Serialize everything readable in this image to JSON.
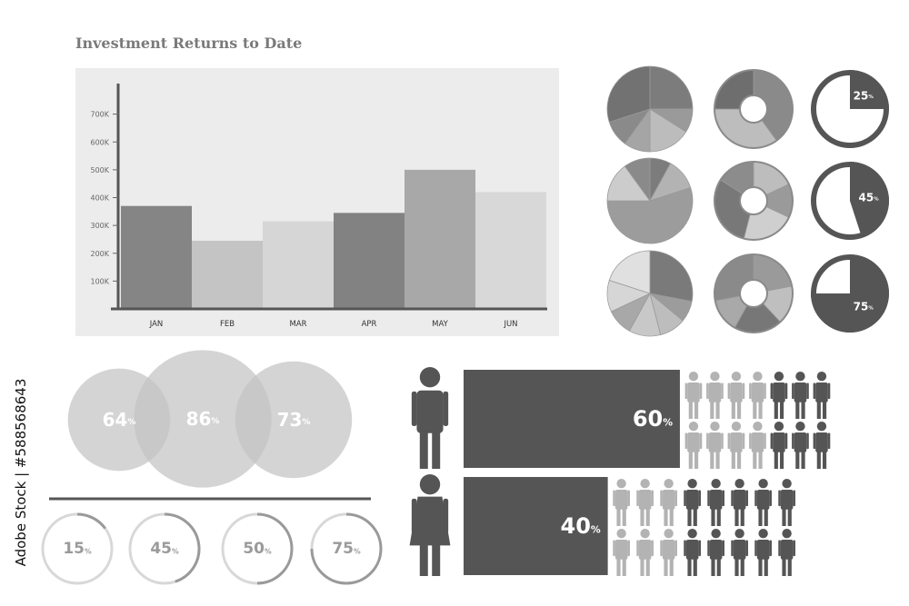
{
  "title": "Investment Returns to Date",
  "stock_id": "Adobe Stock | #588568643",
  "chart_data": [
    {
      "type": "bar",
      "title": "Investment Returns to Date",
      "categories": [
        "JAN",
        "FEB",
        "MAR",
        "APR",
        "MAY",
        "JUN"
      ],
      "values": [
        370000,
        245000,
        315000,
        345000,
        500000,
        420000
      ],
      "yticks": [
        "100K",
        "200K",
        "300K",
        "400K",
        "500K",
        "600K",
        "700K"
      ],
      "ylim": [
        0,
        800000
      ],
      "colors": [
        "#858585",
        "#c4c4c4",
        "#d6d6d6",
        "#828282",
        "#a8a8a8",
        "#d8d8d8"
      ]
    },
    {
      "type": "pie",
      "charts": [
        {
          "style": "pie",
          "values": [
            25,
            9,
            16,
            10,
            10,
            30
          ],
          "colors": [
            "#7c7c7c",
            "#9a9a9a",
            "#bcbcbc",
            "#a5a5a5",
            "#8a8a8a",
            "#727272"
          ]
        },
        {
          "style": "donut",
          "values": [
            40,
            35,
            25
          ],
          "colors": [
            "#8a8a8a",
            "#bdbdbd",
            "#6e6e6e"
          ]
        },
        {
          "style": "gauge",
          "percent": 25,
          "label": "25",
          "unit": "%"
        },
        {
          "style": "pie",
          "values": [
            8,
            12,
            55,
            15,
            10
          ],
          "colors": [
            "#7c7c7c",
            "#b3b3b3",
            "#9c9c9c",
            "#cccccc",
            "#8a8a8a"
          ]
        },
        {
          "style": "donut",
          "values": [
            18,
            14,
            22,
            30,
            16
          ],
          "colors": [
            "#bdbdbd",
            "#9a9a9a",
            "#cfcfcf",
            "#787878",
            "#8c8c8c"
          ]
        },
        {
          "style": "gauge",
          "percent": 45,
          "label": "45",
          "unit": "%"
        },
        {
          "style": "pie",
          "values": [
            28,
            8,
            10,
            12,
            10,
            12,
            20
          ],
          "colors": [
            "#7a7a7a",
            "#9c9c9c",
            "#bdbdbd",
            "#c8c8c8",
            "#a8a8a8",
            "#d6d6d6",
            "#e0e0e0"
          ]
        },
        {
          "style": "donut",
          "values": [
            22,
            16,
            20,
            14,
            28
          ],
          "colors": [
            "#9a9a9a",
            "#bfbfbf",
            "#777777",
            "#a9a9a9",
            "#8a8a8a"
          ]
        },
        {
          "style": "gauge",
          "percent": 75,
          "label": "75",
          "unit": "%"
        }
      ]
    },
    {
      "type": "bubble",
      "bubbles": [
        {
          "label": "64",
          "unit": "%",
          "value": 64
        },
        {
          "label": "86",
          "unit": "%",
          "value": 86
        },
        {
          "label": "73",
          "unit": "%",
          "value": 73
        }
      ]
    },
    {
      "type": "progress-rings",
      "rings": [
        {
          "label": "15",
          "unit": "%",
          "value": 15
        },
        {
          "label": "45",
          "unit": "%",
          "value": 45
        },
        {
          "label": "50",
          "unit": "%",
          "value": 50
        },
        {
          "label": "75",
          "unit": "%",
          "value": 75
        }
      ]
    },
    {
      "type": "bar",
      "orientation": "horizontal",
      "rows": [
        {
          "group": "male",
          "label": "60",
          "unit": "%",
          "value": 60,
          "people_total": 14,
          "people_dark": 6
        },
        {
          "group": "female",
          "label": "40",
          "unit": "%",
          "value": 40,
          "people_total": 16,
          "people_dark": 10
        }
      ],
      "colors": {
        "bar": "#555555",
        "light": "#b3b3b3",
        "dark": "#555555"
      }
    }
  ]
}
